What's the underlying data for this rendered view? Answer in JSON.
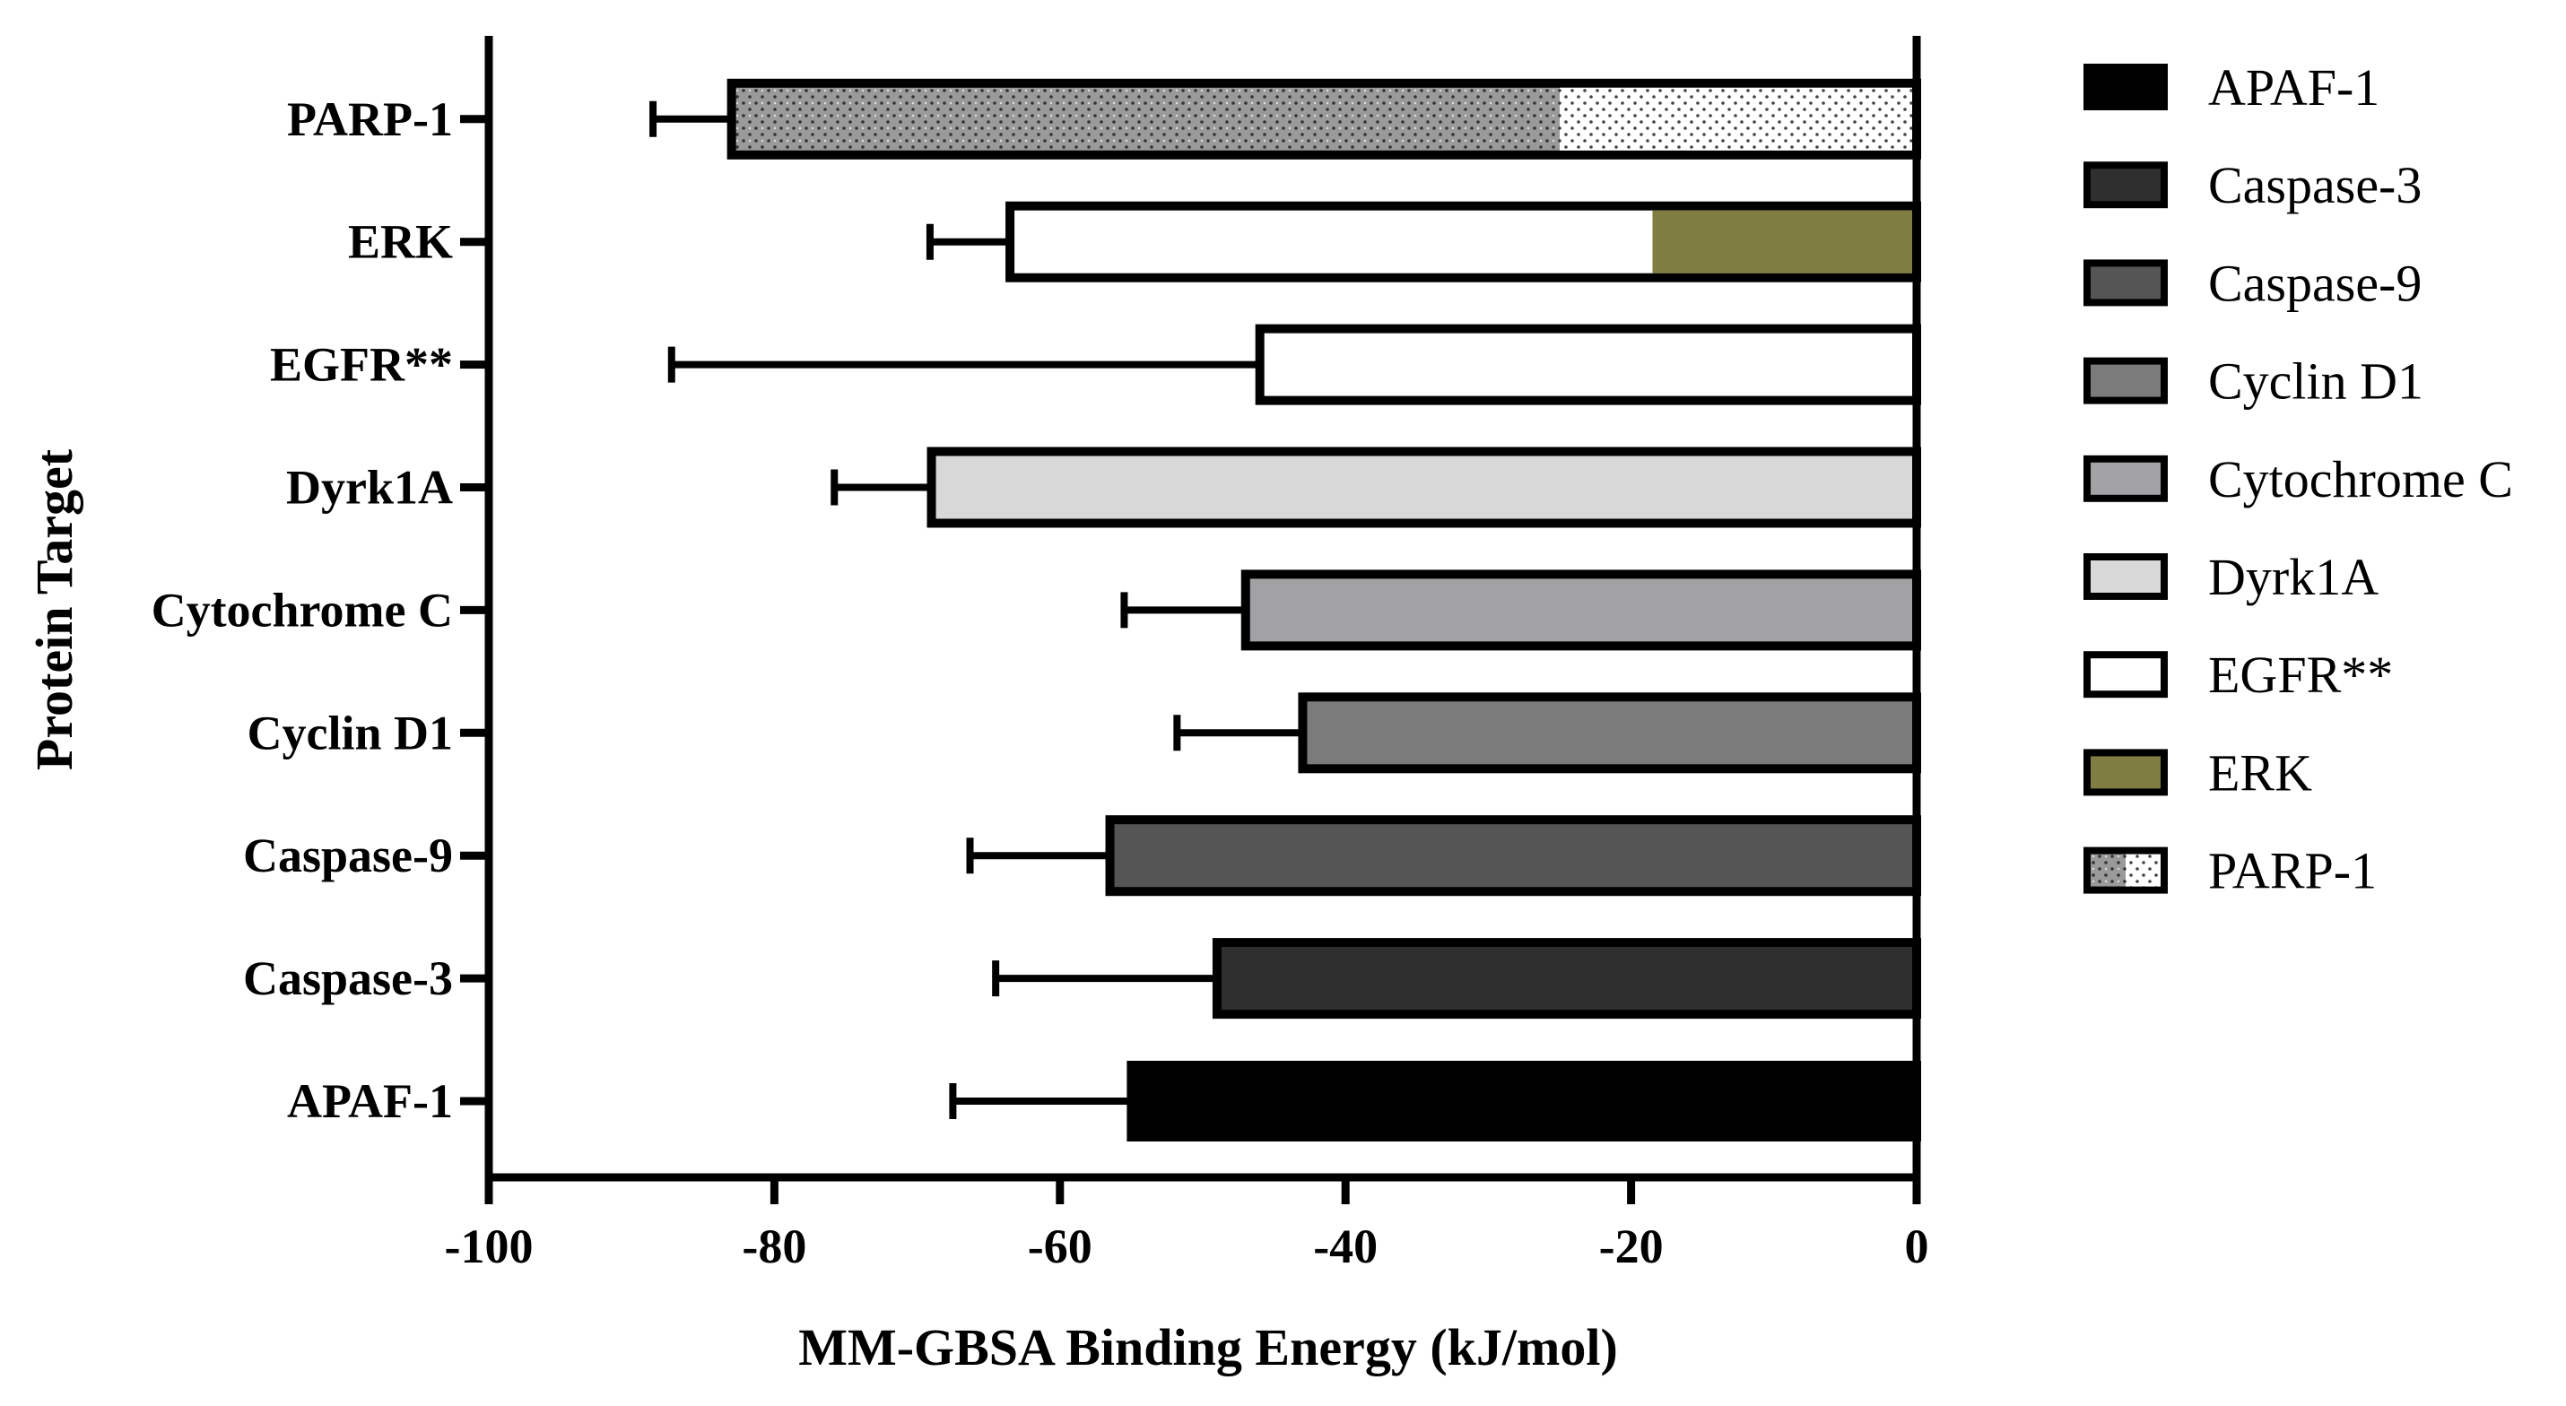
{
  "chart_data": {
    "type": "bar",
    "orientation": "horizontal",
    "xlabel": "MM-GBSA Binding Energy (kJ/mol)",
    "ylabel": "Protein Target",
    "xlim": [
      -100,
      0
    ],
    "xticks": [
      "-100",
      "-80",
      "-60",
      "-40",
      "-20",
      "0"
    ],
    "grid": false,
    "legend_position": "right",
    "categories": [
      "APAF-1",
      "Caspase-3",
      "Caspase-9",
      "Cyclin D1",
      "Cytochrome C",
      "Dyrk1A",
      "EGFR**",
      "ERK",
      "PARP-1"
    ],
    "series": [
      {
        "name": "APAF-1",
        "value": -55,
        "error": 12.5,
        "color": "#000000",
        "pattern": "solid"
      },
      {
        "name": "Caspase-3",
        "value": -49,
        "error": 15.5,
        "color": "#2f2f2f",
        "pattern": "solid"
      },
      {
        "name": "Caspase-9",
        "value": -56.5,
        "error": 9.8,
        "color": "#555555",
        "pattern": "solid"
      },
      {
        "name": "Cyclin D1",
        "value": -43,
        "error": 8.8,
        "color": "#7b7b7b",
        "pattern": "solid"
      },
      {
        "name": "Cytochrome C",
        "value": -47,
        "error": 8.5,
        "color": "#a2a2a5",
        "pattern": "solid"
      },
      {
        "name": "Dyrk1A",
        "value": -69,
        "error": 6.8,
        "color": "#d8d8d8",
        "pattern": "solid"
      },
      {
        "name": "EGFR**",
        "value": -46,
        "error": 41.2,
        "color": "#ffffff",
        "pattern": "solid"
      },
      {
        "name": "ERK",
        "value": -63.5,
        "error": 5.6,
        "color": "#ffffff",
        "pattern": "solid",
        "inner_value": -18.5,
        "inner_color": "#7f7d42"
      },
      {
        "name": "PARP-1",
        "value": -83,
        "error": 5.5,
        "color": "#9a9a9a",
        "pattern": "dotted",
        "inner_value": -25,
        "inner_color": "#ffffff"
      }
    ]
  }
}
